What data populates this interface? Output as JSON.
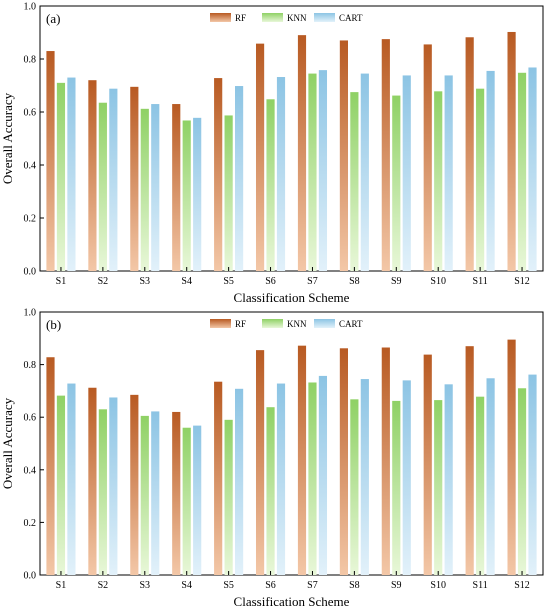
{
  "chart_data": [
    {
      "type": "bar",
      "panel_label": "(a)",
      "xlabel": "Classification Scheme",
      "ylabel": "Overall Accuracy",
      "ylim": [
        0.0,
        1.0
      ],
      "yticks": [
        "0.0",
        "0.2",
        "0.4",
        "0.6",
        "0.8",
        "1.0"
      ],
      "categories": [
        "S1",
        "S2",
        "S3",
        "S4",
        "S5",
        "S6",
        "S7",
        "S8",
        "S9",
        "S10",
        "S11",
        "S12"
      ],
      "legend_position": "top-center",
      "grid": false,
      "series": [
        {
          "name": "RF",
          "values": [
            0.83,
            0.72,
            0.695,
            0.63,
            0.728,
            0.858,
            0.89,
            0.87,
            0.875,
            0.855,
            0.882,
            0.902
          ]
        },
        {
          "name": "KNN",
          "values": [
            0.71,
            0.635,
            0.612,
            0.568,
            0.587,
            0.648,
            0.745,
            0.675,
            0.662,
            0.678,
            0.688,
            0.748
          ]
        },
        {
          "name": "CART",
          "values": [
            0.73,
            0.688,
            0.63,
            0.578,
            0.698,
            0.732,
            0.758,
            0.745,
            0.738,
            0.738,
            0.755,
            0.768
          ]
        }
      ]
    },
    {
      "type": "bar",
      "panel_label": "(b)",
      "xlabel": "Classification Scheme",
      "ylabel": "Overall Accuracy",
      "ylim": [
        0.0,
        1.0
      ],
      "yticks": [
        "0.0",
        "0.2",
        "0.4",
        "0.6",
        "0.8",
        "1.0"
      ],
      "categories": [
        "S1",
        "S2",
        "S3",
        "S4",
        "S5",
        "S6",
        "S7",
        "S8",
        "S9",
        "S10",
        "S11",
        "S12"
      ],
      "legend_position": "top-center",
      "grid": false,
      "series": [
        {
          "name": "RF",
          "values": [
            0.828,
            0.712,
            0.685,
            0.62,
            0.735,
            0.855,
            0.872,
            0.862,
            0.865,
            0.838,
            0.87,
            0.895
          ]
        },
        {
          "name": "KNN",
          "values": [
            0.682,
            0.63,
            0.605,
            0.56,
            0.59,
            0.638,
            0.732,
            0.668,
            0.662,
            0.665,
            0.678,
            0.71
          ]
        },
        {
          "name": "CART",
          "values": [
            0.728,
            0.675,
            0.622,
            0.568,
            0.708,
            0.728,
            0.757,
            0.745,
            0.74,
            0.725,
            0.748,
            0.762
          ]
        }
      ]
    }
  ],
  "colors": {
    "RF_top": "#b85a22",
    "RF_bottom": "#f3c7a7",
    "KNN_top": "#8fd165",
    "KNN_bottom": "#e8f7d8",
    "CART_top": "#8cc4e4",
    "CART_bottom": "#e2f1fa"
  }
}
